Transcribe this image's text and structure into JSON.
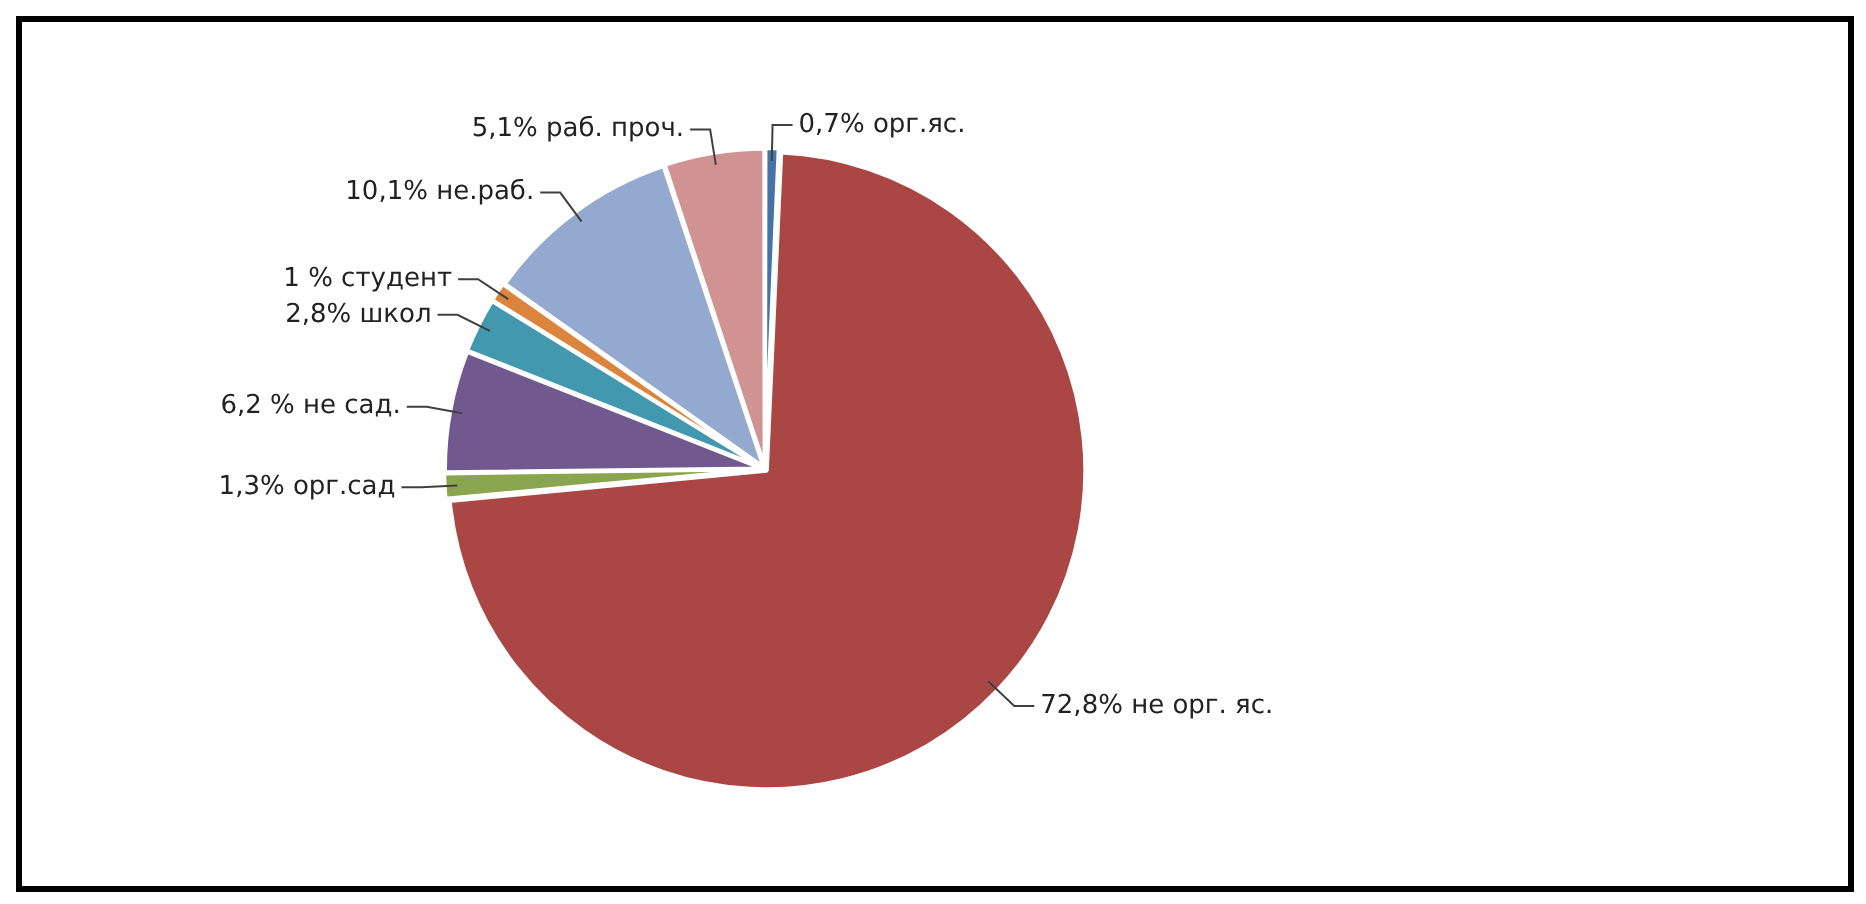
{
  "chart_data": {
    "type": "pie",
    "categories": [
      "орг.яс.",
      "не орг. яс.",
      "орг.сад",
      "не сад.",
      "школ",
      "студент",
      "не.раб.",
      "раб. проч."
    ],
    "values": [
      0.7,
      72.8,
      1.3,
      6.2,
      2.8,
      1,
      10.1,
      5.1
    ],
    "value_labels": [
      "0,7%",
      "72,8%",
      "1,3%",
      "6,2 %",
      "2,8%",
      "1 %",
      "10,1%",
      "5,1%"
    ],
    "colors": [
      "#4572a7",
      "#aa4643",
      "#89a54e",
      "#71588f",
      "#4198af",
      "#db843d",
      "#93a9cf",
      "#d19392"
    ]
  }
}
